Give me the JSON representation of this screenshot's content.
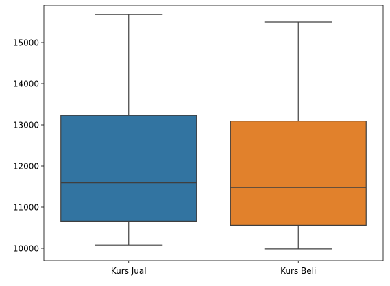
{
  "chart_data": {
    "type": "box",
    "title": "",
    "xlabel": "",
    "ylabel": "",
    "categories": [
      "Kurs Jual",
      "Kurs Beli"
    ],
    "ylim": [
      9700,
      15900
    ],
    "yticks": [
      10000,
      11000,
      12000,
      13000,
      14000,
      15000
    ],
    "grid": false,
    "legend": "none",
    "series": [
      {
        "category": "Kurs Jual",
        "min": 10080,
        "q1": 10660,
        "median": 11590,
        "q3": 13230,
        "max": 15680,
        "color": "#3274a1"
      },
      {
        "category": "Kurs Beli",
        "min": 9985,
        "q1": 10560,
        "median": 11480,
        "q3": 13090,
        "max": 15500,
        "color": "#e1812c"
      }
    ]
  }
}
